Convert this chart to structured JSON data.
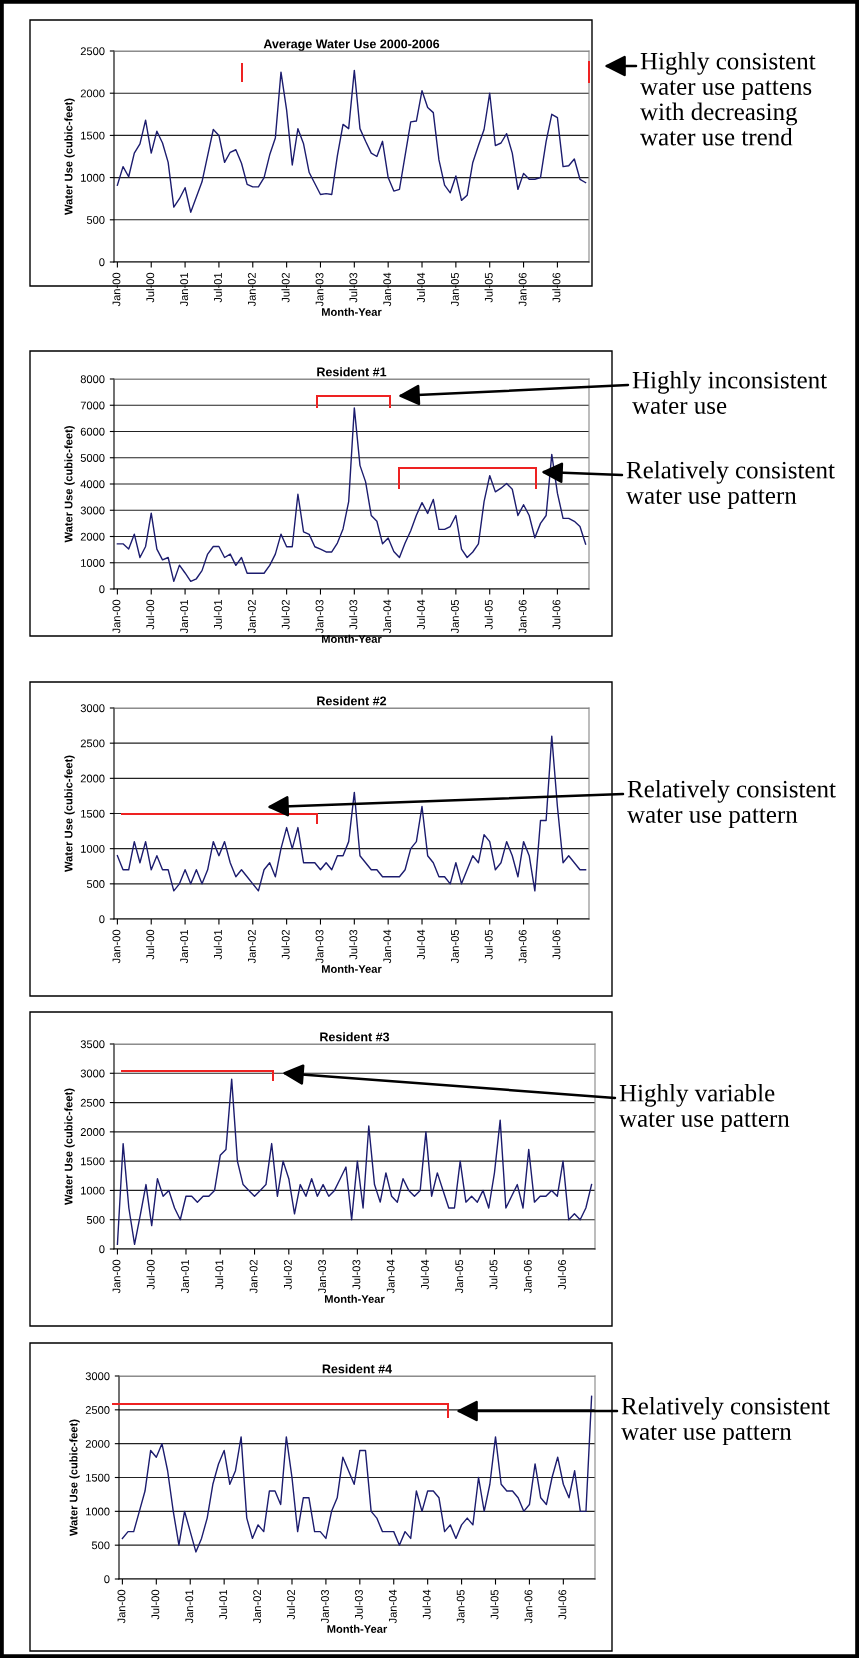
{
  "chart_data": [
    {
      "type": "line",
      "title": "Average Water Use 2000-2006",
      "xlabel": "Month-Year",
      "ylabel": "Water Use (cubic-feet)",
      "categories": [
        "Jan-00",
        null,
        null,
        null,
        null,
        null,
        "Jul-00",
        null,
        null,
        null,
        null,
        null,
        "Jan-01",
        null,
        null,
        null,
        null,
        null,
        "Jul-01",
        null,
        null,
        null,
        null,
        null,
        "Jan-02",
        null,
        null,
        null,
        null,
        null,
        "Jul-02",
        null,
        null,
        null,
        null,
        null,
        "Jan-03",
        null,
        null,
        null,
        null,
        null,
        "Jul-03",
        null,
        null,
        null,
        null,
        null,
        "Jan-04",
        null,
        null,
        null,
        null,
        null,
        "Jul-04",
        null,
        null,
        null,
        null,
        null,
        "Jan-05",
        null,
        null,
        null,
        null,
        null,
        "Jul-05",
        null,
        null,
        null,
        null,
        null,
        "Jan-06",
        null,
        null,
        null,
        null,
        null,
        "Jul-06",
        null,
        null,
        null,
        null,
        null
      ],
      "series": [
        {
          "color": "#1c1c6e",
          "values": [
            910,
            1130,
            1010,
            1290,
            1400,
            1680,
            1290,
            1550,
            1410,
            1180,
            650,
            750,
            880,
            590,
            770,
            950,
            1260,
            1570,
            1500,
            1180,
            1300,
            1330,
            1170,
            920,
            890,
            890,
            1000,
            1270,
            1470,
            2250,
            1800,
            1150,
            1580,
            1400,
            1060,
            930,
            800,
            810,
            800,
            1260,
            1630,
            1580,
            2270,
            1580,
            1430,
            1290,
            1250,
            1430,
            1000,
            840,
            860,
            1260,
            1660,
            1670,
            2030,
            1830,
            1770,
            1210,
            910,
            820,
            1020,
            730,
            790,
            1180,
            1380,
            1570,
            2000,
            1380,
            1410,
            1520,
            1290,
            860,
            1050,
            980,
            980,
            1000,
            1430,
            1750,
            1710,
            1130,
            1140,
            1220,
            980,
            940
          ]
        }
      ],
      "ylim": [
        0,
        2500
      ],
      "yticks": [
        0,
        500,
        1000,
        1500,
        2000,
        2500
      ],
      "grid": "y",
      "line_style": "solid",
      "annotations": [
        "Highly consistent\nwater use pattens\nwith decreasing\nwater use trend"
      ]
    },
    {
      "type": "line",
      "title": "Resident #1",
      "xlabel": "Month-Year",
      "ylabel": "Water Use (cubic-feet)",
      "categories": [
        "Jan-00",
        null,
        null,
        null,
        null,
        null,
        "Jul-00",
        null,
        null,
        null,
        null,
        null,
        "Jan-01",
        null,
        null,
        null,
        null,
        null,
        "Jul-01",
        null,
        null,
        null,
        null,
        null,
        "Jan-02",
        null,
        null,
        null,
        null,
        null,
        "Jul-02",
        null,
        null,
        null,
        null,
        null,
        "Jan-03",
        null,
        null,
        null,
        null,
        null,
        "Jul-03",
        null,
        null,
        null,
        null,
        null,
        "Jan-04",
        null,
        null,
        null,
        null,
        null,
        "Jul-04",
        null,
        null,
        null,
        null,
        null,
        "Jan-05",
        null,
        null,
        null,
        null,
        null,
        "Jul-05",
        null,
        null,
        null,
        null,
        null,
        "Jan-06",
        null,
        null,
        null,
        null,
        null,
        "Jul-06",
        null,
        null,
        null,
        null,
        null
      ],
      "series": [
        {
          "color": "#1c1c6e",
          "values": [
            1720,
            1720,
            1520,
            2090,
            1200,
            1620,
            2890,
            1520,
            1110,
            1200,
            290,
            910,
            610,
            290,
            390,
            700,
            1330,
            1620,
            1620,
            1200,
            1330,
            900,
            1200,
            600,
            600,
            600,
            600,
            900,
            1330,
            2090,
            1610,
            1610,
            3610,
            2180,
            2080,
            1610,
            1520,
            1410,
            1410,
            1750,
            2290,
            3330,
            6900,
            4710,
            4080,
            2800,
            2580,
            1720,
            1940,
            1430,
            1200,
            1750,
            2220,
            2810,
            3290,
            2880,
            3410,
            2270,
            2270,
            2380,
            2800,
            1520,
            1200,
            1410,
            1720,
            3330,
            4320,
            3700,
            3840,
            4020,
            3800,
            2800,
            3210,
            2800,
            1950,
            2500,
            2800,
            5130,
            3650,
            2690,
            2690,
            2580,
            2380,
            1710
          ]
        }
      ],
      "ylim": [
        0,
        8000
      ],
      "yticks": [
        0,
        1000,
        2000,
        3000,
        4000,
        5000,
        6000,
        7000,
        8000
      ],
      "grid": "y",
      "line_style": "solid",
      "annotations": [
        "Highly inconsistent\nwater use",
        "Relatively consistent\nwater use pattern"
      ]
    },
    {
      "type": "line",
      "title": "Resident #2",
      "xlabel": "Month-Year",
      "ylabel": "Water Use (cubic-feet)",
      "categories": [
        "Jan-00",
        null,
        null,
        null,
        null,
        null,
        "Jul-00",
        null,
        null,
        null,
        null,
        null,
        "Jan-01",
        null,
        null,
        null,
        null,
        null,
        "Jul-01",
        null,
        null,
        null,
        null,
        null,
        "Jan-02",
        null,
        null,
        null,
        null,
        null,
        "Jul-02",
        null,
        null,
        null,
        null,
        null,
        "Jan-03",
        null,
        null,
        null,
        null,
        null,
        "Jul-03",
        null,
        null,
        null,
        null,
        null,
        "Jan-04",
        null,
        null,
        null,
        null,
        null,
        "Jul-04",
        null,
        null,
        null,
        null,
        null,
        "Jan-05",
        null,
        null,
        null,
        null,
        null,
        "Jul-05",
        null,
        null,
        null,
        null,
        null,
        "Jan-06",
        null,
        null,
        null,
        null,
        null,
        "Jul-06",
        null,
        null,
        null,
        null,
        null
      ],
      "series": [
        {
          "color": "#1c1c6e",
          "values": [
            900,
            700,
            700,
            1100,
            800,
            1100,
            700,
            900,
            700,
            700,
            400,
            500,
            700,
            500,
            700,
            500,
            700,
            1100,
            900,
            1100,
            800,
            600,
            700,
            600,
            500,
            400,
            700,
            800,
            600,
            1000,
            1300,
            1000,
            1300,
            800,
            800,
            800,
            700,
            800,
            700,
            900,
            900,
            1100,
            1800,
            900,
            800,
            700,
            700,
            600,
            600,
            600,
            600,
            700,
            1000,
            1100,
            1600,
            900,
            800,
            600,
            600,
            500,
            800,
            500,
            700,
            900,
            800,
            1200,
            1100,
            700,
            800,
            1100,
            900,
            600,
            1100,
            900,
            400,
            1400,
            1400,
            2600,
            1600,
            800,
            900,
            800,
            700,
            700
          ]
        }
      ],
      "ylim": [
        0,
        3000
      ],
      "yticks": [
        0,
        500,
        1000,
        1500,
        2000,
        2500,
        3000
      ],
      "grid": "y",
      "line_style": "solid",
      "annotations": [
        "Relatively consistent\nwater use pattern"
      ]
    },
    {
      "type": "line",
      "title": "Resident #3",
      "xlabel": "Month-Year",
      "ylabel": "Water Use (cubic-feet)",
      "categories": [
        "Jan-00",
        null,
        null,
        null,
        null,
        null,
        "Jul-00",
        null,
        null,
        null,
        null,
        null,
        "Jan-01",
        null,
        null,
        null,
        null,
        null,
        "Jul-01",
        null,
        null,
        null,
        null,
        null,
        "Jan-02",
        null,
        null,
        null,
        null,
        null,
        "Jul-02",
        null,
        null,
        null,
        null,
        null,
        "Jan-03",
        null,
        null,
        null,
        null,
        null,
        "Jul-03",
        null,
        null,
        null,
        null,
        null,
        "Jan-04",
        null,
        null,
        null,
        null,
        null,
        "Jul-04",
        null,
        null,
        null,
        null,
        null,
        "Jan-05",
        null,
        null,
        null,
        null,
        null,
        "Jul-05",
        null,
        null,
        null,
        null,
        null,
        "Jan-06",
        null,
        null,
        null,
        null,
        null,
        "Jul-06",
        null,
        null,
        null,
        null,
        null
      ],
      "series": [
        {
          "color": "#1c1c6e",
          "values": [
            80,
            1800,
            700,
            80,
            580,
            1100,
            400,
            1200,
            900,
            1000,
            700,
            500,
            900,
            900,
            800,
            900,
            900,
            1000,
            1600,
            1700,
            2900,
            1500,
            1100,
            1000,
            900,
            1000,
            1100,
            1800,
            900,
            1500,
            1200,
            600,
            1100,
            900,
            1200,
            900,
            1100,
            900,
            1000,
            1200,
            1400,
            500,
            1500,
            700,
            2100,
            1100,
            800,
            1300,
            900,
            800,
            1200,
            1000,
            900,
            1000,
            2000,
            900,
            1300,
            1000,
            700,
            700,
            1500,
            800,
            900,
            800,
            1000,
            700,
            1300,
            2200,
            700,
            900,
            1100,
            700,
            1700,
            800,
            900,
            900,
            1000,
            900,
            1500,
            500,
            600,
            500,
            700,
            1100
          ]
        }
      ],
      "ylim": [
        0,
        3500
      ],
      "yticks": [
        0,
        500,
        1000,
        1500,
        2000,
        2500,
        3000,
        3500
      ],
      "grid": "y",
      "line_style": "solid",
      "annotations": [
        "Highly variable\nwater use pattern"
      ]
    },
    {
      "type": "line",
      "title": "Resident #4",
      "xlabel": "Month-Year",
      "ylabel": "Water Use (cubic-feet)",
      "categories": [
        "Jan-00",
        null,
        null,
        null,
        null,
        null,
        "Jul-00",
        null,
        null,
        null,
        null,
        null,
        "Jan-01",
        null,
        null,
        null,
        null,
        null,
        "Jul-01",
        null,
        null,
        null,
        null,
        null,
        "Jan-02",
        null,
        null,
        null,
        null,
        null,
        "Jul-02",
        null,
        null,
        null,
        null,
        null,
        "Jan-03",
        null,
        null,
        null,
        null,
        null,
        "Jul-03",
        null,
        null,
        null,
        null,
        null,
        "Jan-04",
        null,
        null,
        null,
        null,
        null,
        "Jul-04",
        null,
        null,
        null,
        null,
        null,
        "Jan-05",
        null,
        null,
        null,
        null,
        null,
        "Jul-05",
        null,
        null,
        null,
        null,
        null,
        "Jan-06",
        null,
        null,
        null,
        null,
        null,
        "Jul-06",
        null,
        null,
        null,
        null,
        null
      ],
      "series": [
        {
          "color": "#1c1c6e",
          "values": [
            600,
            700,
            700,
            1000,
            1300,
            1900,
            1800,
            2000,
            1600,
            1000,
            500,
            1000,
            700,
            400,
            600,
            900,
            1400,
            1700,
            1900,
            1400,
            1600,
            2100,
            900,
            600,
            800,
            700,
            1300,
            1300,
            1100,
            2100,
            1500,
            700,
            1200,
            1200,
            700,
            700,
            600,
            1000,
            1200,
            1800,
            1600,
            1400,
            1900,
            1900,
            1000,
            900,
            700,
            700,
            700,
            500,
            700,
            600,
            1300,
            1000,
            1300,
            1300,
            1200,
            700,
            800,
            600,
            800,
            900,
            800,
            1500,
            1000,
            1400,
            2100,
            1400,
            1300,
            1300,
            1200,
            1000,
            1100,
            1700,
            1200,
            1100,
            1500,
            1800,
            1400,
            1200,
            1600,
            1000,
            1000,
            2700
          ]
        }
      ],
      "ylim": [
        0,
        3000
      ],
      "yticks": [
        0,
        500,
        1000,
        1500,
        2000,
        2500,
        3000
      ],
      "grid": "y",
      "line_style": "solid",
      "annotations": [
        "Relatively consistent\nwater use pattern"
      ]
    }
  ]
}
